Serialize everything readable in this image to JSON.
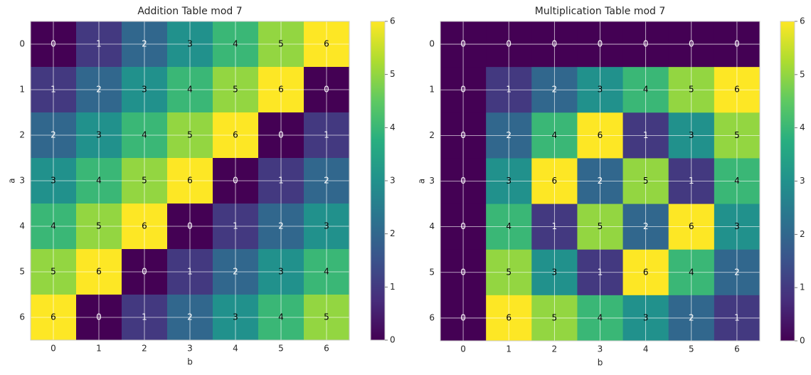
{
  "chart_data": [
    {
      "type": "heatmap",
      "title": "Addition Table mod 7",
      "xlabel": "b",
      "ylabel": "a",
      "x": [
        0,
        1,
        2,
        3,
        4,
        5,
        6
      ],
      "y": [
        0,
        1,
        2,
        3,
        4,
        5,
        6
      ],
      "values": [
        [
          0,
          1,
          2,
          3,
          4,
          5,
          6
        ],
        [
          1,
          2,
          3,
          4,
          5,
          6,
          0
        ],
        [
          2,
          3,
          4,
          5,
          6,
          0,
          1
        ],
        [
          3,
          4,
          5,
          6,
          0,
          1,
          2
        ],
        [
          4,
          5,
          6,
          0,
          1,
          2,
          3
        ],
        [
          5,
          6,
          0,
          1,
          2,
          3,
          4
        ],
        [
          6,
          0,
          1,
          2,
          3,
          4,
          5
        ]
      ],
      "colormap": "viridis",
      "clim": [
        0,
        6
      ],
      "cticks": [
        0,
        1,
        2,
        3,
        4,
        5,
        6
      ],
      "grid": true
    },
    {
      "type": "heatmap",
      "title": "Multiplication Table mod 7",
      "xlabel": "b",
      "ylabel": "a",
      "x": [
        0,
        1,
        2,
        3,
        4,
        5,
        6
      ],
      "y": [
        0,
        1,
        2,
        3,
        4,
        5,
        6
      ],
      "values": [
        [
          0,
          0,
          0,
          0,
          0,
          0,
          0
        ],
        [
          0,
          1,
          2,
          3,
          4,
          5,
          6
        ],
        [
          0,
          2,
          4,
          6,
          1,
          3,
          5
        ],
        [
          0,
          3,
          6,
          2,
          5,
          1,
          4
        ],
        [
          0,
          4,
          1,
          5,
          2,
          6,
          3
        ],
        [
          0,
          5,
          3,
          1,
          6,
          4,
          2
        ],
        [
          0,
          6,
          5,
          4,
          3,
          2,
          1
        ]
      ],
      "colormap": "viridis",
      "clim": [
        0,
        6
      ],
      "cticks": [
        0,
        1,
        2,
        3,
        4,
        5,
        6
      ],
      "grid": true
    }
  ]
}
